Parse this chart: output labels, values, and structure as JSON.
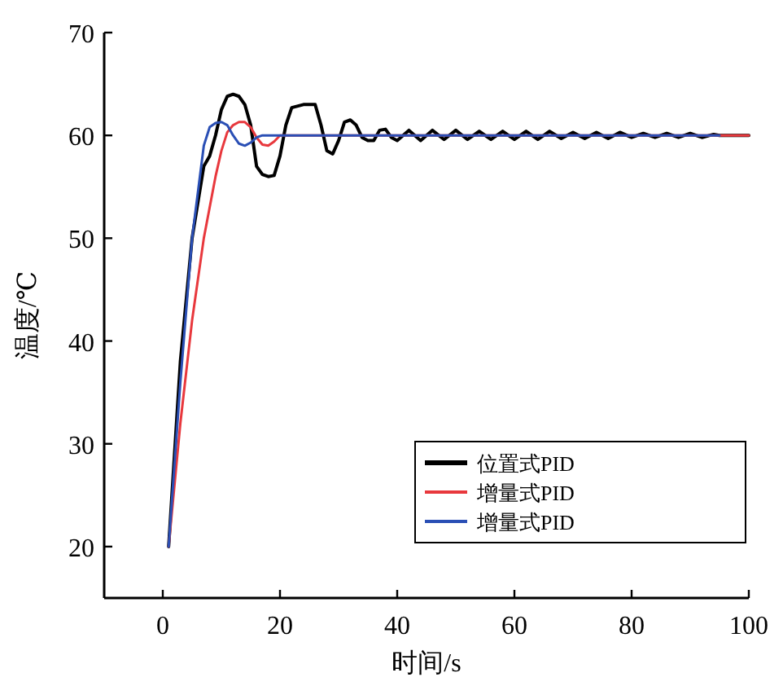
{
  "chart_data": {
    "type": "line",
    "xlabel": "时间/s",
    "ylabel": "温度/℃",
    "xlim": [
      -10,
      100
    ],
    "ylim": [
      15,
      70
    ],
    "xticks": [
      0,
      20,
      40,
      60,
      80,
      100
    ],
    "yticks": [
      20,
      30,
      40,
      50,
      60,
      70
    ],
    "legend": "bottom right",
    "grid": false,
    "line_style": "solid",
    "marker": "none",
    "series": [
      {
        "name": "位置式PID",
        "color": "#000000",
        "x": [
          1,
          3,
          5,
          7,
          8,
          9,
          10,
          11,
          12,
          13,
          14,
          15,
          16,
          17,
          18,
          19,
          20,
          21,
          22,
          24,
          26,
          27,
          28,
          29,
          30,
          31,
          32,
          33,
          34,
          35,
          36,
          37,
          38,
          39,
          40,
          42,
          44,
          46,
          48,
          50,
          52,
          54,
          56,
          58,
          60,
          62,
          64,
          66,
          68,
          70,
          72,
          74,
          76,
          78,
          80,
          82,
          84,
          86,
          88,
          90,
          92,
          94,
          95,
          100
        ],
        "values": [
          20,
          38,
          50,
          57,
          58,
          60,
          62.5,
          63.8,
          64,
          63.8,
          63,
          61,
          57,
          56.2,
          56,
          56.1,
          58,
          61,
          62.7,
          63,
          63,
          61,
          58.5,
          58.2,
          59.5,
          61.3,
          61.5,
          61,
          59.8,
          59.5,
          59.5,
          60.5,
          60.6,
          59.8,
          59.5,
          60.5,
          59.5,
          60.5,
          59.6,
          60.5,
          59.6,
          60.4,
          59.6,
          60.4,
          59.6,
          60.4,
          59.6,
          60.4,
          59.7,
          60.3,
          59.7,
          60.3,
          59.7,
          60.3,
          59.8,
          60.2,
          59.8,
          60.2,
          59.8,
          60.2,
          59.8,
          60.1,
          60,
          60
        ]
      },
      {
        "name": "增量式PID",
        "color": "#e8383d",
        "x": [
          1,
          3,
          5,
          7,
          9,
          10,
          11,
          12,
          13,
          14,
          15,
          16,
          17,
          18,
          19,
          20,
          21,
          100
        ],
        "values": [
          20,
          32,
          42,
          50,
          56,
          58.5,
          60.3,
          61,
          61.3,
          61.3,
          60.8,
          59.8,
          59.1,
          59,
          59.4,
          60,
          60,
          60
        ]
      },
      {
        "name": "增量式PID",
        "color": "#2a4fb5",
        "x": [
          1,
          3,
          5,
          7,
          8,
          9,
          10,
          11,
          12,
          13,
          14,
          15,
          16,
          17,
          95
        ],
        "values": [
          20,
          36,
          50,
          59,
          60.8,
          61.2,
          61.3,
          61,
          60,
          59.2,
          59,
          59.3,
          59.8,
          60,
          60
        ]
      }
    ]
  }
}
